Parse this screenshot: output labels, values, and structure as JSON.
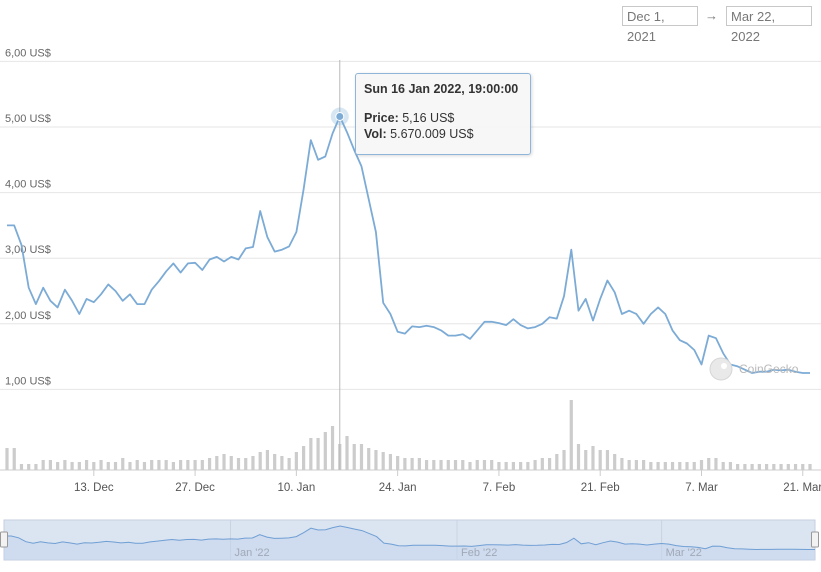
{
  "range_selector": {
    "from": "Dec 1, 2021",
    "arrow": "→",
    "to": "Mar 22, 2022"
  },
  "tooltip": {
    "title": "Sun 16 Jan 2022, 19:00:00",
    "price_label": "Price:",
    "price_value": "5,16 US$",
    "vol_label": "Vol:",
    "vol_value": "5.670.009 US$"
  },
  "watermark": "CoinGecko",
  "colors": {
    "line": "#7cabd6",
    "volume": "#cccccc",
    "grid": "#e6e6e6",
    "navigator_fill": "#dbe4f1",
    "navigator_line": "#6f9fd4"
  },
  "chart_data": {
    "type": "line",
    "title": "",
    "xlabel": "",
    "ylabel": "",
    "x_axis": {
      "type": "date",
      "range": [
        "2021-12-01",
        "2022-03-22"
      ],
      "ticks": [
        {
          "date": "2021-12-13",
          "label": "13. Dec"
        },
        {
          "date": "2021-12-27",
          "label": "27. Dec"
        },
        {
          "date": "2022-01-10",
          "label": "10. Jan"
        },
        {
          "date": "2022-01-24",
          "label": "24. Jan"
        },
        {
          "date": "2022-02-07",
          "label": "7. Feb"
        },
        {
          "date": "2022-02-21",
          "label": "21. Feb"
        },
        {
          "date": "2022-03-07",
          "label": "7. Mar"
        },
        {
          "date": "2022-03-21",
          "label": "21. Mar"
        }
      ]
    },
    "y_axis": {
      "range": [
        0,
        6
      ],
      "ticks": [
        {
          "value": 6,
          "label": "6,00 US$"
        },
        {
          "value": 5,
          "label": "5,00 US$"
        },
        {
          "value": 4,
          "label": "4,00 US$"
        },
        {
          "value": 3,
          "label": "3,00 US$"
        },
        {
          "value": 2,
          "label": "2,00 US$"
        },
        {
          "value": 1,
          "label": "1,00 US$"
        }
      ]
    },
    "grid": true,
    "legend": "none",
    "series": [
      {
        "points": [
          [
            "2021-12-01",
            3.5
          ],
          [
            "2021-12-02",
            3.5
          ],
          [
            "2021-12-03",
            3.2
          ],
          [
            "2021-12-04",
            2.55
          ],
          [
            "2021-12-05",
            2.3
          ],
          [
            "2021-12-06",
            2.55
          ],
          [
            "2021-12-07",
            2.35
          ],
          [
            "2021-12-08",
            2.25
          ],
          [
            "2021-12-09",
            2.52
          ],
          [
            "2021-12-10",
            2.35
          ],
          [
            "2021-12-11",
            2.15
          ],
          [
            "2021-12-12",
            2.38
          ],
          [
            "2021-12-13",
            2.33
          ],
          [
            "2021-12-14",
            2.45
          ],
          [
            "2021-12-15",
            2.6
          ],
          [
            "2021-12-16",
            2.5
          ],
          [
            "2021-12-17",
            2.35
          ],
          [
            "2021-12-18",
            2.45
          ],
          [
            "2021-12-19",
            2.3
          ],
          [
            "2021-12-20",
            2.3
          ],
          [
            "2021-12-21",
            2.52
          ],
          [
            "2021-12-22",
            2.65
          ],
          [
            "2021-12-23",
            2.8
          ],
          [
            "2021-12-24",
            2.92
          ],
          [
            "2021-12-25",
            2.78
          ],
          [
            "2021-12-26",
            2.92
          ],
          [
            "2021-12-27",
            2.93
          ],
          [
            "2021-12-28",
            2.82
          ],
          [
            "2021-12-29",
            2.98
          ],
          [
            "2021-12-30",
            3.02
          ],
          [
            "2021-12-31",
            2.95
          ],
          [
            "2022-01-01",
            3.02
          ],
          [
            "2022-01-02",
            2.98
          ],
          [
            "2022-01-03",
            3.15
          ],
          [
            "2022-01-04",
            3.17
          ],
          [
            "2022-01-05",
            3.72
          ],
          [
            "2022-01-06",
            3.32
          ],
          [
            "2022-01-07",
            3.1
          ],
          [
            "2022-01-08",
            3.13
          ],
          [
            "2022-01-09",
            3.18
          ],
          [
            "2022-01-10",
            3.4
          ],
          [
            "2022-01-11",
            4.05
          ],
          [
            "2022-01-12",
            4.8
          ],
          [
            "2022-01-13",
            4.5
          ],
          [
            "2022-01-14",
            4.55
          ],
          [
            "2022-01-15",
            4.9
          ],
          [
            "2022-01-16",
            5.16
          ],
          [
            "2022-01-17",
            4.92
          ],
          [
            "2022-01-18",
            4.65
          ],
          [
            "2022-01-19",
            4.4
          ],
          [
            "2022-01-20",
            3.9
          ],
          [
            "2022-01-21",
            3.4
          ],
          [
            "2022-01-22",
            2.32
          ],
          [
            "2022-01-23",
            2.15
          ],
          [
            "2022-01-24",
            1.88
          ],
          [
            "2022-01-25",
            1.85
          ],
          [
            "2022-01-26",
            1.96
          ],
          [
            "2022-01-27",
            1.95
          ],
          [
            "2022-01-28",
            1.97
          ],
          [
            "2022-01-29",
            1.95
          ],
          [
            "2022-01-30",
            1.9
          ],
          [
            "2022-01-31",
            1.82
          ],
          [
            "2022-02-01",
            1.82
          ],
          [
            "2022-02-02",
            1.84
          ],
          [
            "2022-02-03",
            1.77
          ],
          [
            "2022-02-04",
            1.9
          ],
          [
            "2022-02-05",
            2.03
          ],
          [
            "2022-02-06",
            2.03
          ],
          [
            "2022-02-07",
            2.01
          ],
          [
            "2022-02-08",
            1.98
          ],
          [
            "2022-02-09",
            2.07
          ],
          [
            "2022-02-10",
            1.98
          ],
          [
            "2022-02-11",
            1.93
          ],
          [
            "2022-02-12",
            1.95
          ],
          [
            "2022-02-13",
            2.0
          ],
          [
            "2022-02-14",
            2.1
          ],
          [
            "2022-02-15",
            2.08
          ],
          [
            "2022-02-16",
            2.42
          ],
          [
            "2022-02-17",
            3.13
          ],
          [
            "2022-02-18",
            2.2
          ],
          [
            "2022-02-19",
            2.38
          ],
          [
            "2022-02-20",
            2.05
          ],
          [
            "2022-02-21",
            2.38
          ],
          [
            "2022-02-22",
            2.66
          ],
          [
            "2022-02-23",
            2.48
          ],
          [
            "2022-02-24",
            2.15
          ],
          [
            "2022-02-25",
            2.2
          ],
          [
            "2022-02-26",
            2.15
          ],
          [
            "2022-02-27",
            2.0
          ],
          [
            "2022-02-28",
            2.15
          ],
          [
            "2022-03-01",
            2.25
          ],
          [
            "2022-03-02",
            2.15
          ],
          [
            "2022-03-03",
            1.9
          ],
          [
            "2022-03-04",
            1.75
          ],
          [
            "2022-03-05",
            1.7
          ],
          [
            "2022-03-06",
            1.6
          ],
          [
            "2022-03-07",
            1.38
          ],
          [
            "2022-03-08",
            1.82
          ],
          [
            "2022-03-09",
            1.78
          ],
          [
            "2022-03-10",
            1.55
          ],
          [
            "2022-03-11",
            1.38
          ],
          [
            "2022-03-12",
            1.35
          ],
          [
            "2022-03-13",
            1.3
          ],
          [
            "2022-03-14",
            1.25
          ],
          [
            "2022-03-15",
            1.27
          ],
          [
            "2022-03-16",
            1.27
          ],
          [
            "2022-03-17",
            1.3
          ],
          [
            "2022-03-18",
            1.29
          ],
          [
            "2022-03-19",
            1.3
          ],
          [
            "2022-03-20",
            1.27
          ],
          [
            "2022-03-21",
            1.25
          ],
          [
            "2022-03-22",
            1.25
          ]
        ]
      }
    ],
    "volume_series": {
      "values": [
        1.1,
        1.1,
        0.3,
        0.3,
        0.3,
        0.5,
        0.5,
        0.4,
        0.5,
        0.4,
        0.4,
        0.5,
        0.4,
        0.5,
        0.4,
        0.4,
        0.6,
        0.4,
        0.5,
        0.4,
        0.5,
        0.5,
        0.5,
        0.4,
        0.5,
        0.5,
        0.5,
        0.5,
        0.6,
        0.7,
        0.8,
        0.7,
        0.6,
        0.6,
        0.7,
        0.9,
        1.0,
        0.8,
        0.7,
        0.6,
        0.9,
        1.2,
        1.6,
        1.6,
        1.9,
        2.2,
        1.3,
        1.7,
        1.3,
        1.3,
        1.1,
        1.0,
        0.9,
        0.8,
        0.7,
        0.6,
        0.6,
        0.6,
        0.5,
        0.5,
        0.5,
        0.5,
        0.5,
        0.5,
        0.4,
        0.5,
        0.5,
        0.5,
        0.4,
        0.4,
        0.4,
        0.4,
        0.4,
        0.5,
        0.6,
        0.6,
        0.8,
        1.0,
        3.5,
        1.3,
        1.0,
        1.2,
        1.0,
        1.0,
        0.8,
        0.6,
        0.5,
        0.5,
        0.5,
        0.4,
        0.4,
        0.4,
        0.4,
        0.4,
        0.4,
        0.4,
        0.5,
        0.6,
        0.6,
        0.4,
        0.4,
        0.3,
        0.3,
        0.3,
        0.3,
        0.3,
        0.3,
        0.3,
        0.3,
        0.3,
        0.3,
        0.3
      ]
    },
    "navigator": {
      "labels": [
        {
          "date": "2022-01-01",
          "label": "Jan '22"
        },
        {
          "date": "2022-02-01",
          "label": "Feb '22"
        },
        {
          "date": "2022-03-01",
          "label": "Mar '22"
        }
      ]
    },
    "highlighted_point": {
      "x": "2022-01-16",
      "y": 5.16
    }
  }
}
